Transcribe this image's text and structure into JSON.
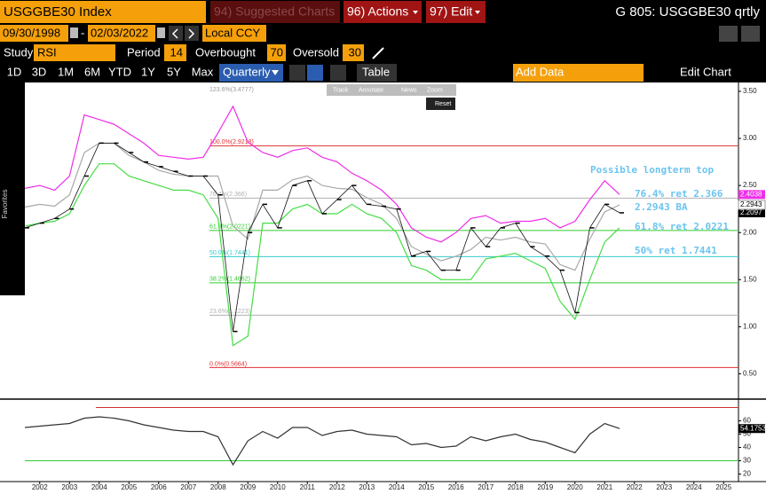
{
  "header": {
    "security": "USGGBE30 Index",
    "suggested": "94) Suggested Charts",
    "actions": "96) Actions",
    "edit": "97) Edit",
    "function": "G 805: USGGBE30 qrtly"
  },
  "range": {
    "start": "09/30/1998",
    "dash": "-",
    "end": "02/03/2022",
    "currency": "Local CCY"
  },
  "study": {
    "label": "Study",
    "name": "RSI",
    "period_label": "Period",
    "period": 14,
    "overbought_label": "Overbought",
    "overbought": 70,
    "oversold_label": "Oversold",
    "oversold": 30
  },
  "periods": [
    "1D",
    "3D",
    "1M",
    "6M",
    "YTD",
    "1Y",
    "5Y",
    "Max"
  ],
  "toolbar": {
    "frequency": "Quarterly",
    "table": "Table",
    "add_data": "Add Data",
    "edit_chart": "Edit Chart"
  },
  "popup": {
    "tools": [
      "Track",
      "Annotate",
      "News",
      "Zoom"
    ],
    "reset": "Reset"
  },
  "sidebar": {
    "label": "Favorites"
  },
  "chart_data": [
    {
      "type": "line",
      "x": [
        2002,
        2002.5,
        2003,
        2003.5,
        2004,
        2004.5,
        2005,
        2005.5,
        2006,
        2006.5,
        2007,
        2007.5,
        2008,
        2008.5,
        2009,
        2009.5,
        2010,
        2010.5,
        2011,
        2011.5,
        2012,
        2012.5,
        2013,
        2013.5,
        2014,
        2014.5,
        2015,
        2015.5,
        2016,
        2016.5,
        2017,
        2017.5,
        2018,
        2018.5,
        2019,
        2019.5,
        2020,
        2020.5,
        2021,
        2021.5,
        2022
      ],
      "series": [
        {
          "color": "#111111",
          "values": [
            2.05,
            2.1,
            2.15,
            2.25,
            2.6,
            2.95,
            2.95,
            2.85,
            2.75,
            2.7,
            2.65,
            2.6,
            2.6,
            2.4,
            0.95,
            2.0,
            2.3,
            2.05,
            2.5,
            2.55,
            2.2,
            2.35,
            2.5,
            2.3,
            2.28,
            2.25,
            1.75,
            1.8,
            1.6,
            1.6,
            2.05,
            1.85,
            2.05,
            2.1,
            1.85,
            1.75,
            1.6,
            1.15,
            2.05,
            2.3,
            2.2097
          ]
        },
        {
          "color": "#ee2ee8",
          "values": [
            2.47,
            2.5,
            2.45,
            2.6,
            3.25,
            3.2,
            3.15,
            3.05,
            2.95,
            2.82,
            2.8,
            2.78,
            2.8,
            3.06,
            3.34,
            2.96,
            2.85,
            2.8,
            2.87,
            2.9,
            2.8,
            2.75,
            2.63,
            2.55,
            2.45,
            2.3,
            2.05,
            1.95,
            1.9,
            2.0,
            2.15,
            2.18,
            2.1,
            2.12,
            2.12,
            2.15,
            2.05,
            2.12,
            2.35,
            2.55,
            2.4038
          ]
        },
        {
          "color": "#a8a8a8",
          "values": [
            2.27,
            2.3,
            2.28,
            2.4,
            2.85,
            2.95,
            2.95,
            2.82,
            2.75,
            2.66,
            2.62,
            2.6,
            2.6,
            2.6,
            2.07,
            1.93,
            2.45,
            2.45,
            2.56,
            2.6,
            2.5,
            2.47,
            2.46,
            2.37,
            2.3,
            2.15,
            1.85,
            1.77,
            1.7,
            1.75,
            1.82,
            1.95,
            1.92,
            1.95,
            1.9,
            1.88,
            1.66,
            1.6,
            1.93,
            2.22,
            2.2943
          ]
        },
        {
          "color": "#44dd44",
          "values": [
            2.07,
            2.1,
            2.12,
            2.2,
            2.5,
            2.73,
            2.73,
            2.6,
            2.55,
            2.5,
            2.45,
            2.45,
            2.4,
            2.15,
            0.8,
            0.9,
            2.1,
            2.1,
            2.25,
            2.3,
            2.2,
            2.2,
            2.3,
            2.2,
            2.15,
            2.0,
            1.65,
            1.6,
            1.5,
            1.5,
            1.5,
            1.72,
            1.75,
            1.78,
            1.7,
            1.62,
            1.27,
            1.08,
            1.5,
            1.9,
            2.05
          ]
        }
      ],
      "xlim": [
        2002,
        2026
      ],
      "xticks": [
        {
          "value": 2002.5,
          "label": "2002"
        },
        {
          "value": 2003.5,
          "label": "2003"
        },
        {
          "value": 2004.5,
          "label": "2004"
        },
        {
          "value": 2005.5,
          "label": "2005"
        },
        {
          "value": 2006.5,
          "label": "2006"
        },
        {
          "value": 2007.5,
          "label": "2007"
        },
        {
          "value": 2008.5,
          "label": "2008"
        },
        {
          "value": 2009.5,
          "label": "2009"
        },
        {
          "value": 2010.5,
          "label": "2010"
        },
        {
          "value": 2011.5,
          "label": "2011"
        },
        {
          "value": 2012.5,
          "label": "2012"
        },
        {
          "value": 2013.5,
          "label": "2013"
        },
        {
          "value": 2014.5,
          "label": "2014"
        },
        {
          "value": 2015.5,
          "label": "2015"
        },
        {
          "value": 2016.5,
          "label": "2016"
        },
        {
          "value": 2017.5,
          "label": "2017"
        },
        {
          "value": 2018.5,
          "label": "2018"
        },
        {
          "value": 2019.5,
          "label": "2019"
        },
        {
          "value": 2020.5,
          "label": "2020"
        },
        {
          "value": 2021.5,
          "label": "2021"
        },
        {
          "value": 2022.5,
          "label": "2022"
        },
        {
          "value": 2023.5,
          "label": "2023"
        },
        {
          "value": 2024.5,
          "label": "2024"
        },
        {
          "value": 2025.5,
          "label": "2025"
        }
      ],
      "ylim": [
        0.25,
        3.575
      ],
      "yticks": [
        {
          "value": 0.5,
          "label": "0.50"
        },
        {
          "value": 1,
          "label": "1.00"
        },
        {
          "value": 1.5,
          "label": "1.50"
        },
        {
          "value": 2,
          "label": "2.00"
        },
        {
          "value": 2.5,
          "label": "2.50"
        },
        {
          "value": 3,
          "label": "3.00"
        },
        {
          "value": 3.5,
          "label": "3.50"
        }
      ],
      "levels": [
        {
          "value": 3.4777,
          "label": "123.6%(3.4777)",
          "color": "none"
        },
        {
          "value": 2.9218,
          "label": "100.0%(2.9218)",
          "color": "#e03030"
        },
        {
          "value": 2.366,
          "label": "76.4%(2.366)",
          "color": "#b0b0b0"
        },
        {
          "value": 2.0221,
          "label": "61.8%(2.0221)",
          "color": "#33cc33"
        },
        {
          "value": 1.7441,
          "label": "50.0%(1.7441)",
          "color": "#33cccc"
        },
        {
          "value": 1.4662,
          "label": "38.2%(1.4662)",
          "color": "#33cc33"
        },
        {
          "value": 1.1223,
          "label": "23.6%(1.1223)",
          "color": "#b0b0b0"
        },
        {
          "value": 0.5664,
          "label": "0.0%(0.5664)",
          "color": "#e03030"
        }
      ],
      "annotations": [
        "Possible longterm top",
        "76.4% ret 2.366",
        "2.2943 BA",
        "61.8% ret 2.0221",
        "50% ret 1.7441"
      ]
    },
    {
      "type": "line",
      "x": [
        2002,
        2002.5,
        2003,
        2003.5,
        2004,
        2004.5,
        2005,
        2005.5,
        2006,
        2006.5,
        2007,
        2007.5,
        2008,
        2008.5,
        2009,
        2009.5,
        2010,
        2010.5,
        2011,
        2011.5,
        2012,
        2012.5,
        2013,
        2013.5,
        2014,
        2014.5,
        2015,
        2015.5,
        2016,
        2016.5,
        2017,
        2017.5,
        2018,
        2018.5,
        2019,
        2019.5,
        2020,
        2020.5,
        2021,
        2021.5,
        2022
      ],
      "series": [
        {
          "color": "#333333",
          "values": [
            55,
            56,
            57,
            58,
            62,
            63,
            62,
            60,
            57,
            55,
            53,
            52,
            52,
            48,
            27,
            45,
            52,
            47,
            55,
            55,
            49,
            52,
            53,
            50,
            49,
            48,
            42,
            43,
            40,
            41,
            48,
            45,
            48,
            50,
            46,
            44,
            40,
            36,
            50,
            58,
            54.1753
          ]
        }
      ],
      "xlim": [
        2002,
        2026
      ],
      "ylim": [
        15,
        75
      ],
      "yticks": [
        20,
        30,
        40,
        50,
        60
      ]
    }
  ]
}
